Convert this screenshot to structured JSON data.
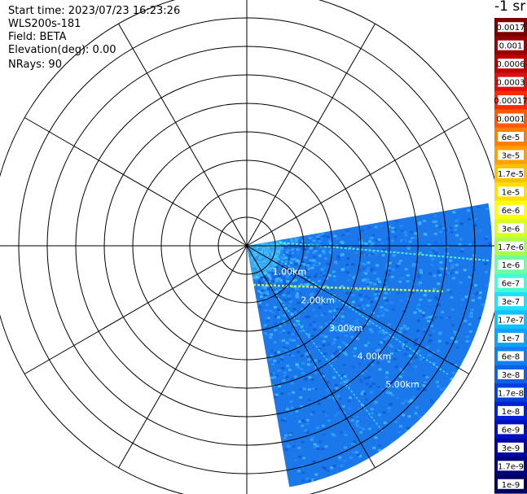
{
  "header": {
    "start_time": "Start time: 2023/07/23 16:23:26",
    "instrument": "WLS200s-181",
    "field": "Field: BETA",
    "elevation": "Elevation(deg): 0.00",
    "nrays": "NRays: 90"
  },
  "colorbar": {
    "units": "-1 sr",
    "labels": [
      "0.0017",
      "0.001",
      "0.0006",
      "0.0003",
      "0.00017",
      "0.0001",
      "6e-5",
      "3e-5",
      "1.7e-5",
      "1e-5",
      "6e-6",
      "3e-6",
      "1.7e-6",
      "1e-6",
      "6e-7",
      "3e-7",
      "1.7e-7",
      "1e-7",
      "6e-8",
      "3e-8",
      "1.7e-8",
      "1e-8",
      "6e-9",
      "3e-9",
      "1.7e-9",
      "1e-9"
    ],
    "colors": [
      "#7a0000",
      "#9a0000",
      "#c00000",
      "#e01010",
      "#ff2a00",
      "#ff5a00",
      "#ff8000",
      "#ffa000",
      "#ffc000",
      "#ffe000",
      "#ffff00",
      "#d8ff20",
      "#a8ff50",
      "#70ffa0",
      "#40ffd8",
      "#20e0ff",
      "#10c0ff",
      "#10a0ff",
      "#1080f0",
      "#1060e8",
      "#0040e0",
      "#0020d8",
      "#0010c0",
      "#0008a0",
      "#000080",
      "#000060"
    ]
  },
  "chart_data": {
    "type": "ppi",
    "title": "",
    "field": "BETA",
    "elevation_deg": 0.0,
    "nrays": 90,
    "azimuth_range_deg": [
      80,
      170
    ],
    "range_rings_km": [
      1.0,
      2.0,
      3.0,
      4.0,
      5.0
    ],
    "range_labels": [
      "1.00km",
      "2.00km",
      "3.00km",
      "4.00km",
      "5.00km"
    ],
    "max_range_km": 8.6,
    "spoke_interval_deg": 30,
    "background_beta": "3e-7"
  }
}
